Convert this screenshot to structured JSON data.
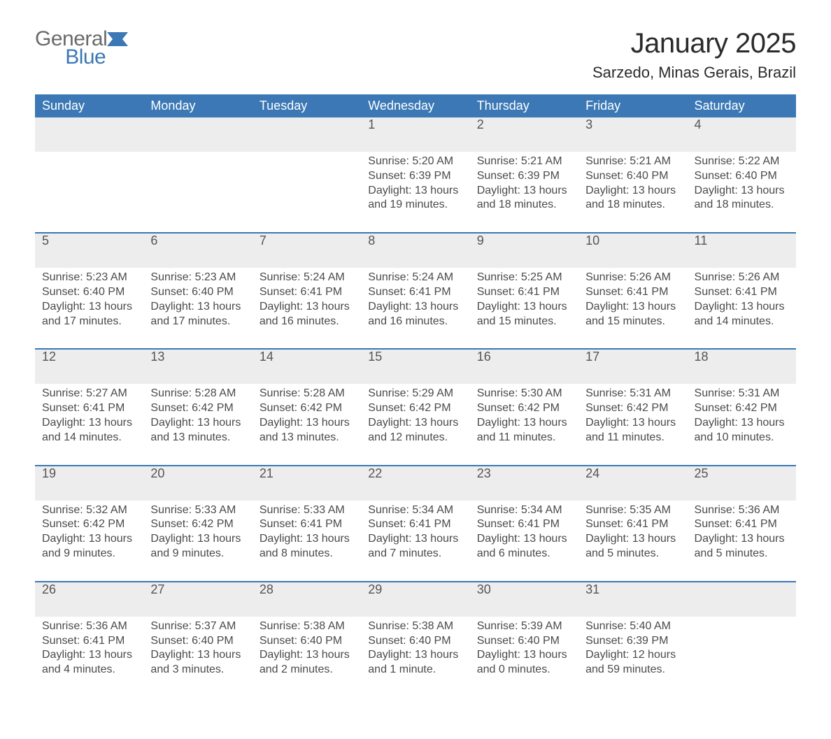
{
  "brand": {
    "word1": "General",
    "word2": "Blue"
  },
  "title": "January 2025",
  "location": "Sarzedo, Minas Gerais, Brazil",
  "colors": {
    "header_bg": "#3b78b5",
    "header_text": "#ffffff",
    "daynum_bg": "#ededed",
    "divider": "#3b78b5",
    "body_text": "#4a4a4a",
    "page_bg": "#ffffff",
    "logo_gray": "#6a6a6a",
    "logo_blue": "#3b78b5"
  },
  "fonts": {
    "title_size_pt": 30,
    "subtitle_size_pt": 17,
    "header_size_pt": 14,
    "body_size_pt": 12
  },
  "weekdays": [
    "Sunday",
    "Monday",
    "Tuesday",
    "Wednesday",
    "Thursday",
    "Friday",
    "Saturday"
  ],
  "weeks": [
    [
      null,
      null,
      null,
      {
        "n": "1",
        "sunrise": "Sunrise: 5:20 AM",
        "sunset": "Sunset: 6:39 PM",
        "daylight": "Daylight: 13 hours and 19 minutes."
      },
      {
        "n": "2",
        "sunrise": "Sunrise: 5:21 AM",
        "sunset": "Sunset: 6:39 PM",
        "daylight": "Daylight: 13 hours and 18 minutes."
      },
      {
        "n": "3",
        "sunrise": "Sunrise: 5:21 AM",
        "sunset": "Sunset: 6:40 PM",
        "daylight": "Daylight: 13 hours and 18 minutes."
      },
      {
        "n": "4",
        "sunrise": "Sunrise: 5:22 AM",
        "sunset": "Sunset: 6:40 PM",
        "daylight": "Daylight: 13 hours and 18 minutes."
      }
    ],
    [
      {
        "n": "5",
        "sunrise": "Sunrise: 5:23 AM",
        "sunset": "Sunset: 6:40 PM",
        "daylight": "Daylight: 13 hours and 17 minutes."
      },
      {
        "n": "6",
        "sunrise": "Sunrise: 5:23 AM",
        "sunset": "Sunset: 6:40 PM",
        "daylight": "Daylight: 13 hours and 17 minutes."
      },
      {
        "n": "7",
        "sunrise": "Sunrise: 5:24 AM",
        "sunset": "Sunset: 6:41 PM",
        "daylight": "Daylight: 13 hours and 16 minutes."
      },
      {
        "n": "8",
        "sunrise": "Sunrise: 5:24 AM",
        "sunset": "Sunset: 6:41 PM",
        "daylight": "Daylight: 13 hours and 16 minutes."
      },
      {
        "n": "9",
        "sunrise": "Sunrise: 5:25 AM",
        "sunset": "Sunset: 6:41 PM",
        "daylight": "Daylight: 13 hours and 15 minutes."
      },
      {
        "n": "10",
        "sunrise": "Sunrise: 5:26 AM",
        "sunset": "Sunset: 6:41 PM",
        "daylight": "Daylight: 13 hours and 15 minutes."
      },
      {
        "n": "11",
        "sunrise": "Sunrise: 5:26 AM",
        "sunset": "Sunset: 6:41 PM",
        "daylight": "Daylight: 13 hours and 14 minutes."
      }
    ],
    [
      {
        "n": "12",
        "sunrise": "Sunrise: 5:27 AM",
        "sunset": "Sunset: 6:41 PM",
        "daylight": "Daylight: 13 hours and 14 minutes."
      },
      {
        "n": "13",
        "sunrise": "Sunrise: 5:28 AM",
        "sunset": "Sunset: 6:42 PM",
        "daylight": "Daylight: 13 hours and 13 minutes."
      },
      {
        "n": "14",
        "sunrise": "Sunrise: 5:28 AM",
        "sunset": "Sunset: 6:42 PM",
        "daylight": "Daylight: 13 hours and 13 minutes."
      },
      {
        "n": "15",
        "sunrise": "Sunrise: 5:29 AM",
        "sunset": "Sunset: 6:42 PM",
        "daylight": "Daylight: 13 hours and 12 minutes."
      },
      {
        "n": "16",
        "sunrise": "Sunrise: 5:30 AM",
        "sunset": "Sunset: 6:42 PM",
        "daylight": "Daylight: 13 hours and 11 minutes."
      },
      {
        "n": "17",
        "sunrise": "Sunrise: 5:31 AM",
        "sunset": "Sunset: 6:42 PM",
        "daylight": "Daylight: 13 hours and 11 minutes."
      },
      {
        "n": "18",
        "sunrise": "Sunrise: 5:31 AM",
        "sunset": "Sunset: 6:42 PM",
        "daylight": "Daylight: 13 hours and 10 minutes."
      }
    ],
    [
      {
        "n": "19",
        "sunrise": "Sunrise: 5:32 AM",
        "sunset": "Sunset: 6:42 PM",
        "daylight": "Daylight: 13 hours and 9 minutes."
      },
      {
        "n": "20",
        "sunrise": "Sunrise: 5:33 AM",
        "sunset": "Sunset: 6:42 PM",
        "daylight": "Daylight: 13 hours and 9 minutes."
      },
      {
        "n": "21",
        "sunrise": "Sunrise: 5:33 AM",
        "sunset": "Sunset: 6:41 PM",
        "daylight": "Daylight: 13 hours and 8 minutes."
      },
      {
        "n": "22",
        "sunrise": "Sunrise: 5:34 AM",
        "sunset": "Sunset: 6:41 PM",
        "daylight": "Daylight: 13 hours and 7 minutes."
      },
      {
        "n": "23",
        "sunrise": "Sunrise: 5:34 AM",
        "sunset": "Sunset: 6:41 PM",
        "daylight": "Daylight: 13 hours and 6 minutes."
      },
      {
        "n": "24",
        "sunrise": "Sunrise: 5:35 AM",
        "sunset": "Sunset: 6:41 PM",
        "daylight": "Daylight: 13 hours and 5 minutes."
      },
      {
        "n": "25",
        "sunrise": "Sunrise: 5:36 AM",
        "sunset": "Sunset: 6:41 PM",
        "daylight": "Daylight: 13 hours and 5 minutes."
      }
    ],
    [
      {
        "n": "26",
        "sunrise": "Sunrise: 5:36 AM",
        "sunset": "Sunset: 6:41 PM",
        "daylight": "Daylight: 13 hours and 4 minutes."
      },
      {
        "n": "27",
        "sunrise": "Sunrise: 5:37 AM",
        "sunset": "Sunset: 6:40 PM",
        "daylight": "Daylight: 13 hours and 3 minutes."
      },
      {
        "n": "28",
        "sunrise": "Sunrise: 5:38 AM",
        "sunset": "Sunset: 6:40 PM",
        "daylight": "Daylight: 13 hours and 2 minutes."
      },
      {
        "n": "29",
        "sunrise": "Sunrise: 5:38 AM",
        "sunset": "Sunset: 6:40 PM",
        "daylight": "Daylight: 13 hours and 1 minute."
      },
      {
        "n": "30",
        "sunrise": "Sunrise: 5:39 AM",
        "sunset": "Sunset: 6:40 PM",
        "daylight": "Daylight: 13 hours and 0 minutes."
      },
      {
        "n": "31",
        "sunrise": "Sunrise: 5:40 AM",
        "sunset": "Sunset: 6:39 PM",
        "daylight": "Daylight: 12 hours and 59 minutes."
      },
      null
    ]
  ]
}
